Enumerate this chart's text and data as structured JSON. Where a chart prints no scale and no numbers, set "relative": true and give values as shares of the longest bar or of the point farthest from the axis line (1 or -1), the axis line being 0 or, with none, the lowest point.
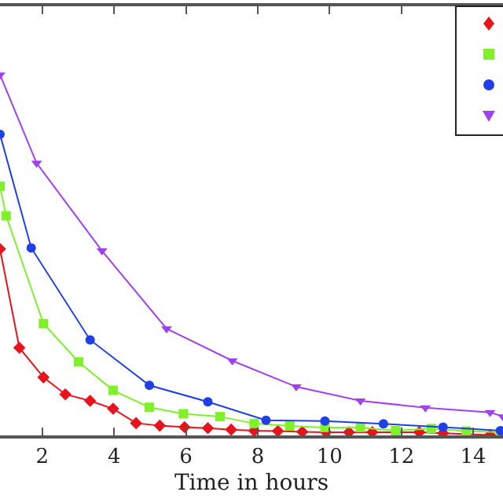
{
  "chart_data": {
    "type": "line",
    "xlabel": "Time in hours",
    "relative": true,
    "xlim": [
      0.82,
      14.83
    ],
    "xticks": [
      2,
      4,
      6,
      8,
      10,
      12,
      14
    ],
    "grid": false,
    "line_style": "solid",
    "series": [
      {
        "color": "#e8141c",
        "marker": "diamond",
        "x": [
          0.82,
          1.36,
          2.03,
          2.64,
          3.33,
          3.97,
          4.61,
          5.27,
          5.96,
          6.61,
          7.26,
          7.9,
          8.56,
          9.24,
          9.9,
          10.54,
          11.19,
          12.5,
          13.16,
          14.47
        ],
        "values": [
          0.517,
          0.243,
          0.161,
          0.114,
          0.096,
          0.074,
          0.034,
          0.027,
          0.023,
          0.02,
          0.016,
          0.013,
          0.012,
          0.01,
          0.009,
          0.009,
          0.009,
          0.009,
          0.006,
          0.001
        ]
      },
      {
        "color": "#7ff02a",
        "marker": "square",
        "x": [
          0.82,
          0.99,
          2.03,
          3.01,
          3.97,
          4.98,
          5.93,
          6.95,
          7.9,
          8.89,
          9.87,
          10.86,
          11.84,
          12.83,
          13.81,
          14.76
        ],
        "values": [
          0.691,
          0.609,
          0.31,
          0.204,
          0.125,
          0.078,
          0.06,
          0.052,
          0.033,
          0.026,
          0.022,
          0.022,
          0.013,
          0.019,
          0.012,
          0.009
        ]
      },
      {
        "color": "#1f3fe8",
        "marker": "circle",
        "x": [
          0.82,
          1.69,
          3.33,
          4.98,
          6.61,
          8.23,
          9.87,
          11.5,
          13.16,
          14.76
        ],
        "values": [
          0.835,
          0.52,
          0.265,
          0.139,
          0.093,
          0.042,
          0.04,
          0.032,
          0.023,
          0.013
        ]
      },
      {
        "color": "#a040f0",
        "marker": "triangle",
        "x": [
          0.82,
          1.84,
          3.66,
          5.46,
          7.29,
          9.07,
          10.86,
          12.67,
          14.47,
          14.83
        ],
        "values": [
          1.0,
          0.755,
          0.512,
          0.296,
          0.207,
          0.135,
          0.096,
          0.077,
          0.064,
          0.052
        ]
      }
    ]
  }
}
